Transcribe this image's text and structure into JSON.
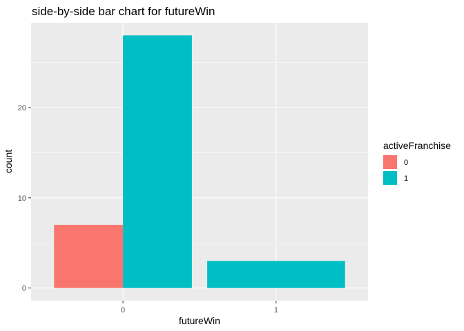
{
  "chart_data": {
    "type": "bar",
    "title": "side-by-side bar chart for futureWin",
    "xlabel": "futureWin",
    "ylabel": "count",
    "categories": [
      "0",
      "1"
    ],
    "series": [
      {
        "name": "0",
        "color": "#F8766D",
        "values": [
          7,
          0
        ]
      },
      {
        "name": "1",
        "color": "#00BFC4",
        "values": [
          28,
          3
        ]
      }
    ],
    "ylim": [
      -1.4,
      29.4
    ],
    "yticks": [
      0,
      10,
      20
    ],
    "ytick_labels": [
      "0",
      "10",
      "20"
    ],
    "legend": {
      "title": "activeFranchise",
      "position": "right",
      "labels": [
        "0",
        "1"
      ]
    },
    "grid": true,
    "panel_background": "#EBEBEB"
  }
}
